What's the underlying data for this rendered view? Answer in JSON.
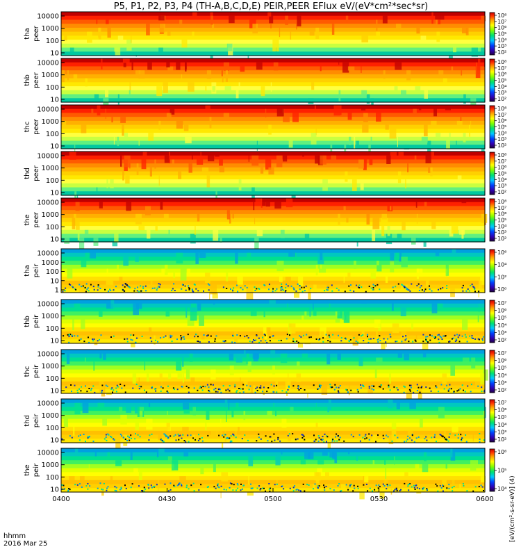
{
  "title": "P5, P1, P2, P3, P4 (TH-A,B,C,D,E) PEIR,PEER EFlux eV/(eV*cm²*sec*sr)",
  "footer": {
    "time_label": "hhmm",
    "date_label": "2016 Mar 25"
  },
  "colorbar_unit_label": "[eV/(cm²-s-sr-eV)] (4)",
  "chart_data": {
    "type": "heatmap",
    "description": "Energy-time spectrograms, energy flux color-coded on log scale",
    "x_ticks": [
      "0400",
      "0430",
      "0500",
      "0530",
      "0600"
    ],
    "x_tick_minutes": [
      0,
      30,
      60,
      90,
      120
    ],
    "x_range_minutes": [
      0,
      120
    ],
    "y_scale": "log",
    "y_tick_labels": [
      "10",
      "100",
      "1000",
      "10000"
    ],
    "panels": [
      {
        "probe": "tha",
        "species": "peer",
        "y_ticks": [
          "10",
          "100",
          "1000",
          "10000"
        ],
        "colorbar": {
          "ticks": [
            "10²",
            "10³",
            "10⁴",
            "10⁵",
            "10⁶",
            "10⁷",
            "10⁸"
          ]
        }
      },
      {
        "probe": "thb",
        "species": "peer",
        "y_ticks": [
          "10",
          "100",
          "1000",
          "10000"
        ],
        "colorbar": {
          "ticks": [
            "10²",
            "10³",
            "10⁴",
            "10⁵",
            "10⁶",
            "10⁷",
            "10⁸"
          ]
        }
      },
      {
        "probe": "thc",
        "species": "peer",
        "y_ticks": [
          "10",
          "100",
          "1000",
          "10000"
        ],
        "colorbar": {
          "ticks": [
            "10²",
            "10³",
            "10⁴",
            "10⁵",
            "10⁶",
            "10⁷",
            "10⁸"
          ]
        }
      },
      {
        "probe": "thd",
        "species": "peer",
        "y_ticks": [
          "10",
          "100",
          "1000",
          "10000"
        ],
        "colorbar": {
          "ticks": [
            "10²",
            "10³",
            "10⁴",
            "10⁵",
            "10⁶",
            "10⁷",
            "10⁸"
          ]
        }
      },
      {
        "probe": "the",
        "species": "peer",
        "y_ticks": [
          "10",
          "100",
          "1000",
          "10000"
        ],
        "colorbar": {
          "ticks": [
            "10²",
            "10³",
            "10⁴",
            "10⁵",
            "10⁶",
            "10⁷",
            "10⁸"
          ]
        }
      },
      {
        "probe": "tha",
        "species": "peir",
        "y_ticks": [
          "1",
          "10",
          "100",
          "1000",
          "10000"
        ],
        "colorbar": {
          "ticks": [
            "10⁰",
            "10²",
            "10⁴",
            "10⁶"
          ]
        }
      },
      {
        "probe": "thb",
        "species": "peir",
        "y_ticks": [
          "10",
          "100",
          "1000",
          "10000"
        ],
        "colorbar": {
          "ticks": [
            "10²",
            "10³",
            "10⁴",
            "10⁵",
            "10⁶",
            "10⁷"
          ]
        }
      },
      {
        "probe": "thc",
        "species": "peir",
        "y_ticks": [
          "10",
          "100",
          "1000",
          "10000"
        ],
        "colorbar": {
          "ticks": [
            "10²",
            "10³",
            "10⁴",
            "10⁵",
            "10⁶",
            "10⁷"
          ]
        }
      },
      {
        "probe": "thd",
        "species": "peir",
        "y_ticks": [
          "10",
          "100",
          "1000",
          "10000"
        ],
        "colorbar": {
          "ticks": [
            "10²",
            "10³",
            "10⁴",
            "10⁵",
            "10⁶",
            "10⁷"
          ]
        }
      },
      {
        "probe": "the",
        "species": "peir",
        "y_ticks": [
          "10",
          "100",
          "1000",
          "10000"
        ],
        "colorbar": {
          "ticks": [
            "10⁴",
            "10⁵",
            "10⁶"
          ]
        }
      }
    ]
  }
}
